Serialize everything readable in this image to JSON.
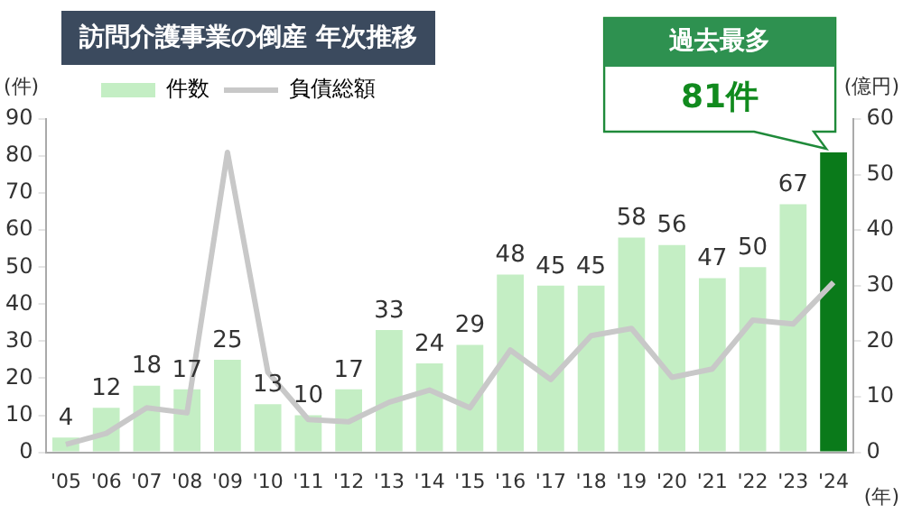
{
  "chart_data": {
    "type": "bar",
    "title": "訪問介護事業の倒産 年次推移",
    "xlabel": "(年)",
    "ylabel": "(件)",
    "y2label": "(億円)",
    "categories": [
      "'05",
      "'06",
      "'07",
      "'08",
      "'09",
      "'10",
      "'11",
      "'12",
      "'13",
      "'14",
      "'15",
      "'16",
      "'17",
      "'18",
      "'19",
      "'20",
      "'21",
      "'22",
      "'23",
      "'24"
    ],
    "series": [
      {
        "name": "件数",
        "color": "#c4eec4",
        "colors": [
          "#c4eec4",
          "#c4eec4",
          "#c4eec4",
          "#c4eec4",
          "#c4eec4",
          "#c4eec4",
          "#c4eec4",
          "#c4eec4",
          "#c4eec4",
          "#c4eec4",
          "#c4eec4",
          "#c4eec4",
          "#c4eec4",
          "#c4eec4",
          "#c4eec4",
          "#c4eec4",
          "#c4eec4",
          "#c4eec4",
          "#c4eec4",
          "#0a7a1a"
        ],
        "values": [
          4,
          12,
          18,
          17,
          25,
          13,
          10,
          17,
          33,
          24,
          29,
          48,
          45,
          45,
          58,
          56,
          47,
          50,
          67,
          81
        ],
        "value_labels": [
          "4",
          "12",
          "18",
          "17",
          "25",
          "13",
          "10",
          "17",
          "33",
          "24",
          "29",
          "48",
          "45",
          "45",
          "58",
          "56",
          "47",
          "50",
          "67",
          null
        ]
      },
      {
        "name": "負債総額",
        "type": "line",
        "axis": "y2",
        "color": "#c8c8c8",
        "values": [
          1.4,
          3.4,
          8,
          7.1,
          54,
          14.4,
          5.9,
          5.5,
          9,
          11.2,
          8,
          18.4,
          13.1,
          21,
          22.3,
          13.5,
          15,
          23.8,
          23.1,
          30.6
        ]
      }
    ],
    "ylim": [
      0,
      90
    ],
    "yticks": [
      0,
      10,
      20,
      30,
      40,
      50,
      60,
      70,
      80,
      90
    ],
    "y2lim": [
      0,
      60
    ],
    "y2ticks": [
      0,
      10,
      20,
      30,
      40,
      50,
      60
    ],
    "grid": false,
    "legend": "top left",
    "marker": "none",
    "annotations": [
      "過去最多",
      {
        "text": "81件",
        "x": "'24",
        "y": 81
      }
    ]
  }
}
